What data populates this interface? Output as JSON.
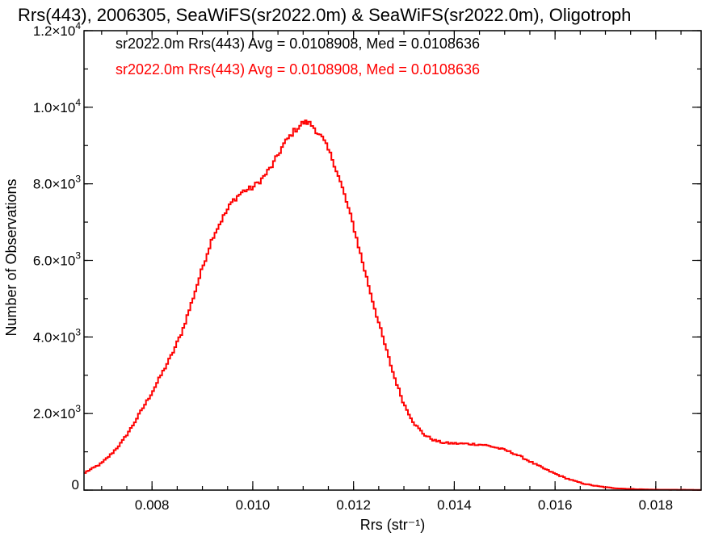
{
  "chart_data": {
    "type": "histogram",
    "title": "Rrs(443), 2006305, SeaWiFS(sr2022.0m) & SeaWiFS(sr2022.0m), Oligotroph",
    "xlabel": "Rrs (str⁻¹)",
    "ylabel": "Number of Observations",
    "xlim": [
      0.00665,
      0.0189
    ],
    "ylim": [
      0,
      12000
    ],
    "x_ticks": [
      {
        "value": 0.008,
        "label": "0.008"
      },
      {
        "value": 0.01,
        "label": "0.010"
      },
      {
        "value": 0.012,
        "label": "0.012"
      },
      {
        "value": 0.014,
        "label": "0.014"
      },
      {
        "value": 0.016,
        "label": "0.016"
      },
      {
        "value": 0.018,
        "label": "0.018"
      }
    ],
    "y_ticks": [
      {
        "value": 0,
        "mant": "0",
        "exp": ""
      },
      {
        "value": 2000,
        "mant": "2.0×10",
        "exp": "3"
      },
      {
        "value": 4000,
        "mant": "4.0×10",
        "exp": "3"
      },
      {
        "value": 6000,
        "mant": "6.0×10",
        "exp": "3"
      },
      {
        "value": 8000,
        "mant": "8.0×10",
        "exp": "3"
      },
      {
        "value": 10000,
        "mant": "1.0×10",
        "exp": "4"
      },
      {
        "value": 12000,
        "mant": "1.2×10",
        "exp": "4"
      }
    ],
    "x_minor_step": 0.0005,
    "y_minor_step": 1000,
    "annotations": [
      {
        "text": "sr2022.0m Rrs(443) Avg = 0.0108908, Med = 0.0108636",
        "color": "#000000"
      },
      {
        "text": "sr2022.0m Rrs(443) Avg = 0.0108908, Med = 0.0108636",
        "color": "#ff0000"
      }
    ],
    "series": [
      {
        "color": "#ff0000",
        "x": [
          0.00665,
          0.0068,
          0.007,
          0.0072,
          0.0074,
          0.0076,
          0.0078,
          0.008,
          0.0082,
          0.0084,
          0.0086,
          0.0088,
          0.009,
          0.0092,
          0.0094,
          0.0096,
          0.0098,
          0.01,
          0.0102,
          0.0104,
          0.0106,
          0.0108,
          0.011,
          0.0111,
          0.0112,
          0.0114,
          0.0116,
          0.0118,
          0.012,
          0.0122,
          0.0124,
          0.0126,
          0.0128,
          0.013,
          0.0132,
          0.0134,
          0.0136,
          0.0138,
          0.014,
          0.0142,
          0.0144,
          0.0146,
          0.0148,
          0.015,
          0.0152,
          0.0154,
          0.0156,
          0.0158,
          0.016,
          0.0162,
          0.0164,
          0.0166,
          0.0168,
          0.017,
          0.0172,
          0.0174,
          0.0176,
          0.0178,
          0.018,
          0.0185,
          0.0189
        ],
        "y": [
          450,
          550,
          700,
          950,
          1250,
          1650,
          2100,
          2550,
          3050,
          3550,
          4150,
          4950,
          5800,
          6600,
          7100,
          7550,
          7800,
          7900,
          8150,
          8500,
          9000,
          9350,
          9600,
          9600,
          9500,
          9150,
          8600,
          7800,
          6900,
          5850,
          4850,
          3900,
          3000,
          2250,
          1750,
          1450,
          1300,
          1230,
          1220,
          1210,
          1200,
          1180,
          1120,
          1050,
          950,
          820,
          680,
          550,
          430,
          320,
          230,
          160,
          110,
          75,
          50,
          35,
          25,
          18,
          12,
          8,
          5
        ]
      }
    ]
  }
}
